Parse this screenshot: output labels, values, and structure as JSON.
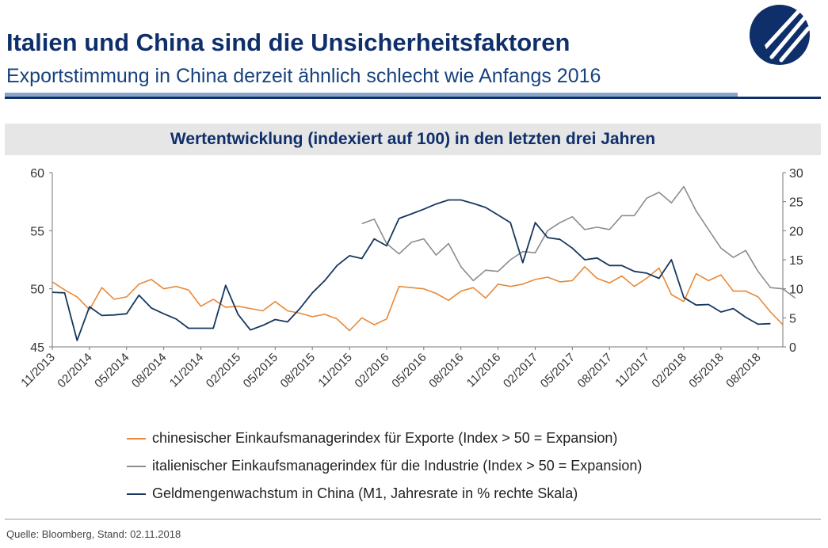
{
  "header": {
    "title": "Italien und China sind die Unsicherheitsfaktoren",
    "subtitle": "Exportstimmung in China derzeit ähnlich schlecht wie Anfangs 2016"
  },
  "colors": {
    "brand_navy": "#0f2f6b",
    "china_pmi_export": "#e8893a",
    "italy_pmi": "#8c8c8c",
    "china_m1": "#17375e"
  },
  "chart_data": {
    "type": "line",
    "title": "Wertentwicklung (indexiert auf 100) in den letzten drei Jahren",
    "grid": false,
    "legend_position": "bottom",
    "y_left": {
      "ylim": [
        45,
        60
      ],
      "ticks": [
        "45",
        "50",
        "55",
        "60"
      ]
    },
    "y_right": {
      "ylim": [
        0,
        30
      ],
      "ticks": [
        "0",
        "5",
        "10",
        "15",
        "20",
        "25",
        "30"
      ]
    },
    "x_tick_labels": [
      "11/2013",
      "02/2014",
      "05/2014",
      "08/2014",
      "11/2014",
      "02/2015",
      "05/2015",
      "08/2015",
      "11/2015",
      "02/2016",
      "05/2016",
      "08/2016",
      "11/2016",
      "02/2017",
      "05/2017",
      "08/2017",
      "11/2017",
      "02/2018",
      "05/2018",
      "08/2018"
    ],
    "x_start": "11/2013",
    "x_end": "10/2018",
    "series": [
      {
        "name": "chinesischer Einkaufsmanagerindex für Exporte (Index > 50 = Expansion)",
        "axis": "left",
        "start_month": "11/2013",
        "values": [
          50.6,
          49.9,
          49.3,
          48.2,
          50.1,
          49.1,
          49.3,
          50.4,
          50.8,
          50.0,
          50.2,
          49.9,
          48.5,
          49.1,
          48.4,
          48.5,
          48.3,
          48.1,
          48.9,
          48.1,
          47.9,
          47.6,
          47.8,
          47.4,
          46.4,
          47.5,
          46.9,
          47.4,
          50.2,
          50.1,
          50.0,
          49.6,
          49.0,
          49.8,
          50.1,
          49.2,
          50.4,
          50.2,
          50.4,
          50.8,
          51.0,
          50.6,
          50.7,
          51.9,
          50.9,
          50.5,
          51.1,
          50.2,
          50.9,
          51.8,
          49.5,
          48.9,
          51.3,
          50.7,
          51.2,
          49.8,
          49.8,
          49.3,
          48.0,
          46.9
        ]
      },
      {
        "name": "italienischer Einkaufsmanagerindex für die Industrie (Index > 50 = Expansion)",
        "axis": "left",
        "start_month": "12/2015",
        "values": [
          55.6,
          56.0,
          53.9,
          53.0,
          54.0,
          54.3,
          52.9,
          53.9,
          51.9,
          50.7,
          51.6,
          51.5,
          52.5,
          53.2,
          53.1,
          55.0,
          55.7,
          56.2,
          55.1,
          55.3,
          55.1,
          56.3,
          56.3,
          57.8,
          58.3,
          57.4,
          58.8,
          56.7,
          55.1,
          53.5,
          52.7,
          53.3,
          51.5,
          50.1,
          50.0,
          49.2
        ]
      },
      {
        "name": "Geldmengenwachstum in China (M1, Jahresrate in % rechte Skala)",
        "axis": "right",
        "start_month": "11/2013",
        "values": [
          9.4,
          9.3,
          1.1,
          6.9,
          5.4,
          5.5,
          5.7,
          8.9,
          6.7,
          5.7,
          4.8,
          3.2,
          3.2,
          3.2,
          10.6,
          5.6,
          2.9,
          3.7,
          4.7,
          4.3,
          6.6,
          9.3,
          11.4,
          14.0,
          15.7,
          15.2,
          18.6,
          17.4,
          22.1,
          22.9,
          23.7,
          24.6,
          25.3,
          25.3,
          24.7,
          24.0,
          22.7,
          21.4,
          14.5,
          21.4,
          18.8,
          18.5,
          17.0,
          15.0,
          15.3,
          14.0,
          14.0,
          13.0,
          12.7,
          11.8,
          15.0,
          8.5,
          7.2,
          7.3,
          6.0,
          6.6,
          5.1,
          3.9,
          4.0
        ]
      }
    ]
  },
  "legend": [
    "chinesischer Einkaufsmanagerindex für Exporte (Index > 50 = Expansion)",
    "italienischer Einkaufsmanagerindex für die Industrie (Index > 50 = Expansion)",
    "Geldmengenwachstum in China (M1, Jahresrate in % rechte Skala)"
  ],
  "footer": {
    "source": "Quelle: Bloomberg, Stand: 02.11.2018"
  },
  "logo": {
    "icon": "company-logo-icon"
  }
}
